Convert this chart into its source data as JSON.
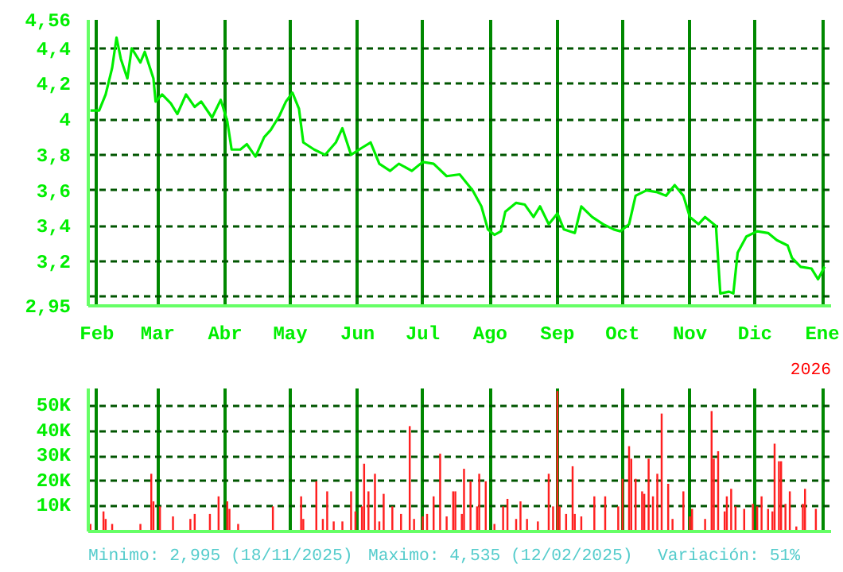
{
  "chart_data": [
    {
      "type": "line",
      "color": "#00ee00",
      "grid": true,
      "marker": "none",
      "line_style": "solid",
      "annotations": [
        "2026"
      ],
      "xlim": [
        "2025-01-28",
        "2026-01-05"
      ],
      "xticks": [
        {
          "value": "2025-02-01",
          "label": "Feb"
        },
        {
          "value": "2025-03-01",
          "label": "Mar"
        },
        {
          "value": "2025-04-01",
          "label": "Abr"
        },
        {
          "value": "2025-05-01",
          "label": "May"
        },
        {
          "value": "2025-06-01",
          "label": "Jun"
        },
        {
          "value": "2025-07-01",
          "label": "Jul"
        },
        {
          "value": "2025-08-01",
          "label": "Ago"
        },
        {
          "value": "2025-09-01",
          "label": "Sep"
        },
        {
          "value": "2025-10-01",
          "label": "Oct"
        },
        {
          "value": "2025-11-01",
          "label": "Nov"
        },
        {
          "value": "2025-12-01",
          "label": "Dic"
        },
        {
          "value": "2026-01-01",
          "label": "Ene"
        }
      ],
      "ylim": [
        2.95,
        4.56
      ],
      "yticks": [
        {
          "value": 2.95,
          "label": "2,95"
        },
        {
          "value": 3,
          "label": null
        },
        {
          "value": 3.2,
          "label": "3,2"
        },
        {
          "value": 3.4,
          "label": "3,4"
        },
        {
          "value": 3.6,
          "label": "3,6"
        },
        {
          "value": 3.8,
          "label": "3,8"
        },
        4,
        {
          "value": 4.2,
          "label": "4,2"
        },
        {
          "value": 4.4,
          "label": "4,4"
        },
        {
          "value": 4.56,
          "label": "4,56"
        }
      ],
      "x": [
        "2025-01-29",
        "2025-02-02",
        "2025-02-05",
        "2025-02-08",
        "2025-02-10",
        "2025-02-12",
        "2025-02-15",
        "2025-02-17",
        "2025-02-21",
        "2025-02-23",
        "2025-02-27",
        "2025-02-28",
        "2025-03-03",
        "2025-03-07",
        "2025-03-10",
        "2025-03-14",
        "2025-03-18",
        "2025-03-21",
        "2025-03-26",
        "2025-03-30",
        "2025-04-02",
        "2025-04-04",
        "2025-04-08",
        "2025-04-11",
        "2025-04-15",
        "2025-04-19",
        "2025-04-22",
        "2025-04-26",
        "2025-04-29",
        "2025-05-02",
        "2025-05-05",
        "2025-05-07",
        "2025-05-12",
        "2025-05-17",
        "2025-05-22",
        "2025-05-25",
        "2025-05-29",
        "2025-06-03",
        "2025-06-07",
        "2025-06-11",
        "2025-06-16",
        "2025-06-20",
        "2025-06-26",
        "2025-07-01",
        "2025-07-06",
        "2025-07-12",
        "2025-07-18",
        "2025-07-24",
        "2025-07-28",
        "2025-07-31",
        "2025-08-03",
        "2025-08-06",
        "2025-08-08",
        "2025-08-13",
        "2025-08-17",
        "2025-08-21",
        "2025-08-24",
        "2025-08-28",
        "2025-09-01",
        "2025-09-04",
        "2025-09-09",
        "2025-09-12",
        "2025-09-17",
        "2025-09-22",
        "2025-09-27",
        "2025-09-30",
        "2025-10-04",
        "2025-10-07",
        "2025-10-12",
        "2025-10-17",
        "2025-10-21",
        "2025-10-25",
        "2025-10-29",
        "2025-11-01",
        "2025-11-05",
        "2025-11-08",
        "2025-11-13",
        "2025-11-15",
        "2025-11-19",
        "2025-11-21",
        "2025-11-23",
        "2025-11-27",
        "2025-12-02",
        "2025-12-07",
        "2025-12-11",
        "2025-12-16",
        "2025-12-18",
        "2025-12-22",
        "2025-12-27",
        "2025-12-30",
        "2026-01-02"
      ],
      "values": [
        4.05,
        4.05,
        4.14,
        4.29,
        4.46,
        4.34,
        4.23,
        4.4,
        4.32,
        4.38,
        4.23,
        4.1,
        4.14,
        4.09,
        4.03,
        4.14,
        4.07,
        4.1,
        4.01,
        4.11,
        3.99,
        3.83,
        3.83,
        3.86,
        3.79,
        3.9,
        3.94,
        4.02,
        4.1,
        4.15,
        4.06,
        3.87,
        3.83,
        3.8,
        3.87,
        3.95,
        3.8,
        3.84,
        3.87,
        3.75,
        3.71,
        3.75,
        3.71,
        3.76,
        3.75,
        3.68,
        3.69,
        3.6,
        3.51,
        3.38,
        3.35,
        3.37,
        3.48,
        3.53,
        3.52,
        3.45,
        3.51,
        3.41,
        3.47,
        3.38,
        3.36,
        3.51,
        3.45,
        3.41,
        3.38,
        3.37,
        3.41,
        3.57,
        3.6,
        3.59,
        3.57,
        3.63,
        3.57,
        3.45,
        3.41,
        3.45,
        3.4,
        3.02,
        3.03,
        3.02,
        3.25,
        3.34,
        3.37,
        3.36,
        3.32,
        3.29,
        3.22,
        3.17,
        3.16,
        3.1,
        3.17
      ]
    },
    {
      "type": "bar",
      "color": "#ff2020",
      "grid": true,
      "tick_labels": "y",
      "annotations": [
        "Minimo: 2,995 (18/11/2025)",
        "Maximo: 4,535 (12/02/2025)",
        "Variación: 51%"
      ],
      "xlim": [
        "2025-01-28",
        "2026-01-05"
      ],
      "xticks": [
        {
          "value": "2025-02-01",
          "label": null
        },
        {
          "value": "2025-03-01",
          "label": null
        },
        {
          "value": "2025-04-01",
          "label": null
        },
        {
          "value": "2025-05-01",
          "label": null
        },
        {
          "value": "2025-06-01",
          "label": null
        },
        {
          "value": "2025-07-01",
          "label": null
        },
        {
          "value": "2025-08-01",
          "label": null
        },
        {
          "value": "2025-09-01",
          "label": null
        },
        {
          "value": "2025-10-01",
          "label": null
        },
        {
          "value": "2025-11-01",
          "label": null
        },
        {
          "value": "2025-12-01",
          "label": null
        },
        {
          "value": "2026-01-01",
          "label": null
        }
      ],
      "ylim": [
        0,
        57
      ],
      "yticks": [
        {
          "value": 10,
          "label": "10K"
        },
        {
          "value": 20,
          "label": "20K"
        },
        {
          "value": 30,
          "label": "30K"
        },
        {
          "value": 40,
          "label": "40K"
        },
        {
          "value": 50,
          "label": "50K"
        }
      ],
      "x": [
        "2025-01-29",
        "2025-02-04",
        "2025-02-05",
        "2025-02-08",
        "2025-02-21",
        "2025-02-26",
        "2025-02-27",
        "2025-03-02",
        "2025-03-08",
        "2025-03-16",
        "2025-03-18",
        "2025-03-25",
        "2025-03-29",
        "2025-04-02",
        "2025-04-03",
        "2025-04-07",
        "2025-04-23",
        "2025-05-06",
        "2025-05-07",
        "2025-05-13",
        "2025-05-16",
        "2025-05-18",
        "2025-05-21",
        "2025-05-25",
        "2025-05-29",
        "2025-05-31",
        "2025-06-03",
        "2025-06-04",
        "2025-06-06",
        "2025-06-09",
        "2025-06-11",
        "2025-06-13",
        "2025-06-17",
        "2025-06-21",
        "2025-06-25",
        "2025-06-27",
        "2025-07-01",
        "2025-07-03",
        "2025-07-06",
        "2025-07-09",
        "2025-07-12",
        "2025-07-15",
        "2025-07-16",
        "2025-07-19",
        "2025-07-20",
        "2025-07-23",
        "2025-07-26",
        "2025-07-27",
        "2025-07-30",
        "2025-08-03",
        "2025-08-07",
        "2025-08-09",
        "2025-08-13",
        "2025-08-15",
        "2025-08-18",
        "2025-08-23",
        "2025-08-28",
        "2025-08-30",
        "2025-09-01",
        "2025-09-02",
        "2025-09-05",
        "2025-09-08",
        "2025-09-09",
        "2025-09-12",
        "2025-09-18",
        "2025-09-23",
        "2025-09-29",
        "2025-10-01",
        "2025-10-04",
        "2025-10-05",
        "2025-10-07",
        "2025-10-10",
        "2025-10-11",
        "2025-10-13",
        "2025-10-15",
        "2025-10-17",
        "2025-10-19",
        "2025-10-22",
        "2025-10-24",
        "2025-10-29",
        "2025-11-01",
        "2025-11-02",
        "2025-11-08",
        "2025-11-11",
        "2025-11-12",
        "2025-11-14",
        "2025-11-17",
        "2025-11-18",
        "2025-11-20",
        "2025-11-22",
        "2025-11-26",
        "2025-11-30",
        "2025-12-02",
        "2025-12-04",
        "2025-12-07",
        "2025-12-09",
        "2025-12-10",
        "2025-12-12",
        "2025-12-13",
        "2025-12-15",
        "2025-12-17",
        "2025-12-20",
        "2025-12-23",
        "2025-12-24",
        "2025-12-29"
      ],
      "values": [
        3,
        8,
        5,
        3,
        3,
        23,
        12,
        10,
        6,
        5,
        7,
        7,
        14,
        12,
        9,
        3,
        10,
        14,
        5,
        20,
        5,
        16,
        4,
        4,
        16,
        8,
        10,
        27,
        16,
        23,
        4,
        15,
        10,
        7,
        42,
        5,
        6,
        7,
        14,
        31,
        6,
        16,
        16,
        7,
        25,
        20,
        10,
        23,
        20,
        3,
        10,
        13,
        5,
        12,
        5,
        4,
        23,
        10,
        56,
        10,
        7,
        26,
        7,
        6,
        14,
        14,
        10,
        21,
        34,
        29,
        21,
        16,
        15,
        29,
        14,
        23,
        47,
        19,
        5,
        16,
        6,
        9,
        5,
        48,
        29,
        32,
        8,
        14,
        17,
        10,
        9,
        11,
        10,
        14,
        9,
        8,
        35,
        28,
        28,
        11,
        16,
        2,
        11,
        17,
        9
      ]
    }
  ]
}
